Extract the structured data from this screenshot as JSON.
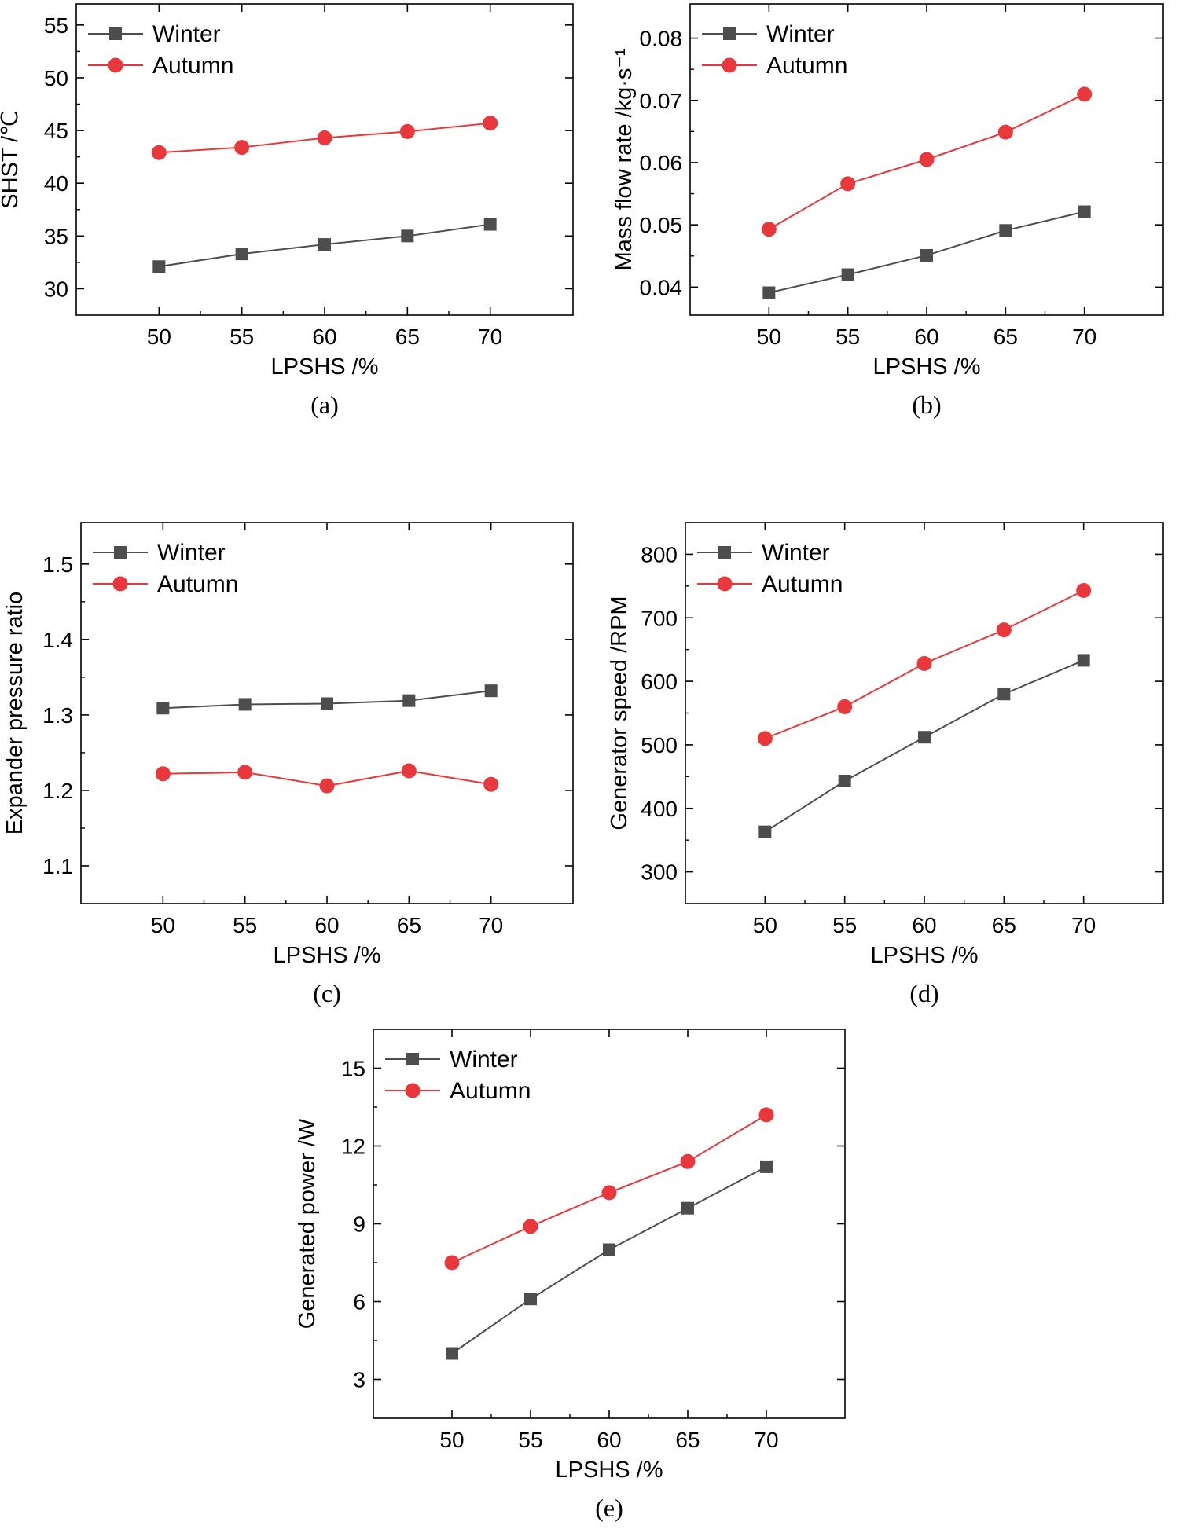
{
  "chart_data": [
    {
      "id": "a",
      "type": "line",
      "caption": "(a)",
      "xlabel": "LPSHS /%",
      "ylabel": "SHST /℃",
      "x": [
        50,
        55,
        60,
        65,
        70
      ],
      "xlim": [
        45,
        75
      ],
      "ylim": [
        27.5,
        57
      ],
      "yticks": [
        30,
        35,
        40,
        45,
        50,
        55
      ],
      "ytick_labels": [
        "30",
        "35",
        "40",
        "45",
        "50",
        "55"
      ],
      "series": [
        {
          "name": "Winter",
          "marker": "square",
          "color": "#4d4d4d",
          "values": [
            32.1,
            33.3,
            34.2,
            35.0,
            36.1
          ]
        },
        {
          "name": "Autumn",
          "marker": "circle",
          "color": "#e8383b",
          "values": [
            42.9,
            43.4,
            44.3,
            44.9,
            45.7
          ]
        }
      ],
      "legend": "top-left",
      "grid": false
    },
    {
      "id": "b",
      "type": "line",
      "caption": "(b)",
      "xlabel": "LPSHS /%",
      "ylabel": "Mass flow rate /kg·s⁻¹",
      "x": [
        50,
        55,
        60,
        65,
        70
      ],
      "xlim": [
        45,
        75
      ],
      "ylim": [
        0.0355,
        0.0855
      ],
      "yticks": [
        0.04,
        0.05,
        0.06,
        0.07,
        0.08
      ],
      "ytick_labels": [
        "0.04",
        "0.05",
        "0.06",
        "0.07",
        "0.08"
      ],
      "series": [
        {
          "name": "Winter",
          "marker": "square",
          "color": "#4d4d4d",
          "values": [
            0.0391,
            0.042,
            0.0451,
            0.0491,
            0.0521
          ]
        },
        {
          "name": "Autumn",
          "marker": "circle",
          "color": "#e8383b",
          "values": [
            0.0493,
            0.0566,
            0.0605,
            0.0649,
            0.071
          ]
        }
      ],
      "legend": "top-left",
      "grid": false
    },
    {
      "id": "c",
      "type": "line",
      "caption": "(c)",
      "xlabel": "LPSHS /%",
      "ylabel": "Expander pressure ratio",
      "x": [
        50,
        55,
        60,
        65,
        70
      ],
      "xlim": [
        45,
        75
      ],
      "ylim": [
        1.05,
        1.555
      ],
      "yticks": [
        1.1,
        1.2,
        1.3,
        1.4,
        1.5
      ],
      "ytick_labels": [
        "1.1",
        "1.2",
        "1.3",
        "1.4",
        "1.5"
      ],
      "series": [
        {
          "name": "Winter",
          "marker": "square",
          "color": "#4d4d4d",
          "values": [
            1.309,
            1.314,
            1.315,
            1.319,
            1.332
          ]
        },
        {
          "name": "Autumn",
          "marker": "circle",
          "color": "#e8383b",
          "values": [
            1.222,
            1.224,
            1.206,
            1.226,
            1.208
          ]
        }
      ],
      "legend": "top-left",
      "grid": false
    },
    {
      "id": "d",
      "type": "line",
      "caption": "(d)",
      "xlabel": "LPSHS /%",
      "ylabel": "Generator speed /RPM",
      "x": [
        50,
        55,
        60,
        65,
        70
      ],
      "xlim": [
        45,
        75
      ],
      "ylim": [
        250,
        850
      ],
      "yticks": [
        300,
        400,
        500,
        600,
        700,
        800
      ],
      "ytick_labels": [
        "300",
        "400",
        "500",
        "600",
        "700",
        "800"
      ],
      "series": [
        {
          "name": "Winter",
          "marker": "square",
          "color": "#4d4d4d",
          "values": [
            363,
            443,
            512,
            580,
            633
          ]
        },
        {
          "name": "Autumn",
          "marker": "circle",
          "color": "#e8383b",
          "values": [
            510,
            560,
            628,
            681,
            743
          ]
        }
      ],
      "legend": "top-left",
      "grid": false
    },
    {
      "id": "e",
      "type": "line",
      "caption": "(e)",
      "xlabel": "LPSHS /%",
      "ylabel": "Generated power /W",
      "x": [
        50,
        55,
        60,
        65,
        70
      ],
      "xlim": [
        45,
        75
      ],
      "ylim": [
        1.5,
        16.5
      ],
      "yticks": [
        3,
        6,
        9,
        12,
        15
      ],
      "ytick_labels": [
        "3",
        "6",
        "9",
        "12",
        "15"
      ],
      "series": [
        {
          "name": "Winter",
          "marker": "square",
          "color": "#4d4d4d",
          "values": [
            4.0,
            6.1,
            8.0,
            9.6,
            11.2
          ]
        },
        {
          "name": "Autumn",
          "marker": "circle",
          "color": "#e8383b",
          "values": [
            7.5,
            8.9,
            10.2,
            11.4,
            13.2
          ]
        }
      ],
      "legend": "top-left",
      "grid": false
    }
  ]
}
